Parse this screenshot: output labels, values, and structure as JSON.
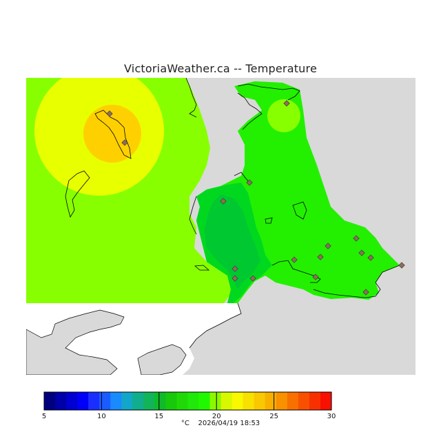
{
  "title": "VictoriaWeather.ca -- Temperature",
  "unit": "°C",
  "timestamp": "2026/04/19 18:53",
  "colors": {
    "land_outside": "#d9d9d9",
    "sea_blank": "#ffffff",
    "coast": "#000000",
    "station_marker": "#8c6d5a"
  },
  "scale": {
    "min": 5,
    "max": 30,
    "tick_labels": [
      "5",
      "10",
      "15",
      "20",
      "25",
      "30"
    ],
    "colors": [
      "#00007f",
      "#0000a8",
      "#0000d0",
      "#0000f8",
      "#1a2eff",
      "#1a5cff",
      "#1a8aff",
      "#12a6c8",
      "#10ae8c",
      "#12b45a",
      "#10ba2a",
      "#18c80a",
      "#20d808",
      "#20e808",
      "#20f800",
      "#8cf800",
      "#d8f800",
      "#f8f800",
      "#f8e000",
      "#f8c800",
      "#f8b000",
      "#f89000",
      "#f87000",
      "#f85000",
      "#f83000",
      "#f81000"
    ]
  },
  "map_zones": [
    {
      "name": "warm-core",
      "temperature_band": "24-25",
      "color": "#ffd000"
    },
    {
      "name": "warm-ring",
      "temperature_band": "22-24",
      "color": "#e8ff00"
    },
    {
      "name": "mid-ring",
      "temperature_band": "21-22",
      "color": "#88ff00"
    },
    {
      "name": "cool-area",
      "temperature_band": "19-20",
      "color": "#00dd00"
    },
    {
      "name": "coolest-area",
      "temperature_band": "18-19",
      "color": "#00cc22"
    }
  ]
}
